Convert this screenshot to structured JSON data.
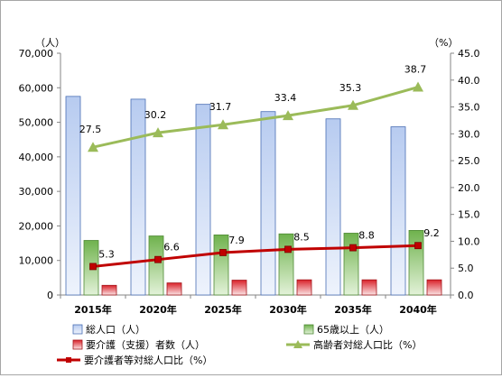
{
  "chart_data": {
    "type": "bar",
    "categories": [
      "2015年",
      "2020年",
      "2025年",
      "2030年",
      "2035年",
      "2040年"
    ],
    "left_axis": {
      "unit": "（人）",
      "ylim": [
        0,
        70000
      ],
      "step": 10000,
      "tick_labels": [
        "0",
        "10,000",
        "20,000",
        "30,000",
        "40,000",
        "50,000",
        "60,000",
        "70,000"
      ]
    },
    "right_axis": {
      "unit": "（%）",
      "ylim": [
        0,
        45
      ],
      "step": 5,
      "tick_labels": [
        "0.0",
        "5.0",
        "10.0",
        "15.0",
        "20.0",
        "25.0",
        "30.0",
        "35.0",
        "40.0",
        "45.0"
      ]
    },
    "series": [
      {
        "name": "総人口（人）",
        "kind": "bar",
        "axis": "left",
        "values": [
          57500,
          56700,
          55200,
          53100,
          51000,
          48700
        ]
      },
      {
        "name": "65歳以上（人）",
        "kind": "bar",
        "axis": "left",
        "values": [
          15800,
          17100,
          17400,
          17700,
          17900,
          18700
        ]
      },
      {
        "name": "要介護（支援）者数（人）",
        "kind": "bar",
        "axis": "left",
        "values": [
          2800,
          3500,
          4300,
          4400,
          4400,
          4400
        ]
      },
      {
        "name": "高齢者対総人口比（%）",
        "kind": "line",
        "axis": "right",
        "values": [
          27.5,
          30.2,
          31.7,
          33.4,
          35.3,
          38.7
        ],
        "labels": [
          "27.5",
          "30.2",
          "31.7",
          "33.4",
          "35.3",
          "38.7"
        ]
      },
      {
        "name": "要介護者等対総人口比（%）",
        "kind": "line",
        "axis": "right",
        "values": [
          5.3,
          6.6,
          7.9,
          8.5,
          8.8,
          9.2
        ],
        "labels": [
          "5.3",
          "6.6",
          "7.9",
          "8.5",
          "8.8",
          "9.2"
        ]
      }
    ],
    "legend_position": "bottom",
    "grid": false
  },
  "colors": {
    "total_bar_top": "#b7cbf0",
    "total_bar_bottom": "#eef3fc",
    "total_bar_stroke": "#4a6fb5",
    "elder_bar_top": "#6fb24d",
    "elder_bar_bottom": "#e3f2d9",
    "elder_bar_stroke": "#4f8a35",
    "care_bar_top": "#d9222a",
    "care_bar_bottom": "#fbe3e4",
    "care_bar_stroke": "#a3161c",
    "elder_ratio_line": "#9bbb59",
    "care_ratio_line": "#c00000"
  }
}
